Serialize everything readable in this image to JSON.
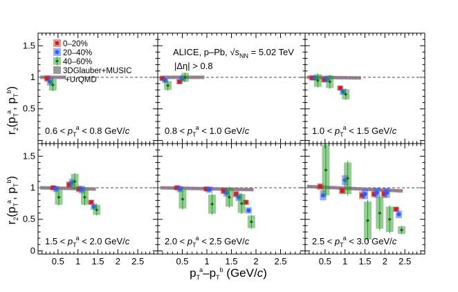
{
  "chart_data": {
    "type": "scatter",
    "title": "ALICE, p–Pb, √s_NN = 5.02 TeV",
    "annotation": "|Δη| > 0.8",
    "xlabel": "p_T^a–p_T^b (GeV/c)",
    "ylabel": "r_2(p_T^a, p_T^b)",
    "xlim": [
      0,
      3
    ],
    "ylim": [
      -0.05,
      1.7
    ],
    "x_ticks": [
      "0.5",
      "1",
      "1.5",
      "2",
      "2.5"
    ],
    "y_ticks": [
      "0",
      "0.5",
      "1",
      "1.5"
    ],
    "legend": [
      {
        "label": "0–20%",
        "color": "#cc1f1f"
      },
      {
        "label": "20–40%",
        "color": "#2e5bff"
      },
      {
        "label": "40–60%",
        "color": "#2a9a2a"
      },
      {
        "label": "3DGlauber+MUSIC",
        "color": "#999999"
      },
      {
        "label": "+UrQMD",
        "color": "#999999"
      }
    ],
    "panels": [
      {
        "caption": "0.6 < p_T^a < 0.8 GeV/c",
        "series": [
          {
            "name": "0–20%",
            "x": [
              0.3
            ],
            "y": [
              0.98
            ],
            "err": [
              0.05
            ]
          },
          {
            "name": "20–40%",
            "x": [
              0.3
            ],
            "y": [
              0.93
            ],
            "err": [
              0.06
            ]
          },
          {
            "name": "40–60%",
            "x": [
              0.3
            ],
            "y": [
              0.88
            ],
            "err": [
              0.09
            ]
          }
        ],
        "model": [
          [
            0.05,
            1.0
          ],
          [
            0.7,
            1.0
          ]
        ]
      },
      {
        "caption": "0.8 < p_T^a < 1.0 GeV/c",
        "series": [
          {
            "name": "0–20%",
            "x": [
              0.15,
              0.5
            ],
            "y": [
              0.98,
              0.93
            ],
            "err": [
              0.03,
              0.04
            ]
          },
          {
            "name": "20–40%",
            "x": [
              0.15,
              0.5
            ],
            "y": [
              0.95,
              0.98
            ],
            "err": [
              0.04,
              0.05
            ]
          },
          {
            "name": "40–60%",
            "x": [
              0.15,
              0.5
            ],
            "y": [
              0.87,
              1.0
            ],
            "err": [
              0.07,
              0.07
            ]
          }
        ],
        "model": [
          [
            0.05,
            1.0
          ],
          [
            0.95,
            1.0
          ]
        ]
      },
      {
        "caption": "1.0 < p_T^a < 1.5 GeV/c",
        "series": [
          {
            "name": "0–20%",
            "x": [
              0.25,
              0.55,
              0.95
            ],
            "y": [
              0.99,
              0.96,
              0.83
            ],
            "err": [
              0.04,
              0.04,
              0.04
            ]
          },
          {
            "name": "20–40%",
            "x": [
              0.25,
              0.55,
              0.95
            ],
            "y": [
              0.99,
              0.97,
              0.77
            ],
            "err": [
              0.04,
              0.05,
              0.05
            ]
          },
          {
            "name": "40–60%",
            "x": [
              0.25,
              0.55,
              0.95
            ],
            "y": [
              0.95,
              0.93,
              0.73
            ],
            "err": [
              0.1,
              0.1,
              0.08
            ]
          }
        ],
        "model": [
          [
            0.05,
            1.0
          ],
          [
            1.4,
            0.99
          ]
        ]
      },
      {
        "caption": "1.5 < p_T^a < 2.0 GeV/c",
        "series": [
          {
            "name": "0–20%",
            "x": [
              0.45,
              0.85,
              1.1,
              1.4
            ],
            "y": [
              1.0,
              1.05,
              0.98,
              0.77
            ],
            "err": [
              0.04,
              0.05,
              0.05,
              0.04
            ]
          },
          {
            "name": "20–40%",
            "x": [
              0.45,
              0.85,
              1.1,
              1.4
            ],
            "y": [
              0.98,
              1.08,
              0.97,
              0.7
            ],
            "err": [
              0.05,
              0.06,
              0.06,
              0.05
            ]
          },
          {
            "name": "40–60%",
            "x": [
              0.45,
              0.85,
              1.1,
              1.4
            ],
            "y": [
              0.85,
              1.1,
              0.85,
              0.65
            ],
            "err": [
              0.12,
              0.12,
              0.12,
              0.08
            ]
          }
        ],
        "model": [
          [
            0.05,
            1.0
          ],
          [
            1.45,
            0.98
          ]
        ]
      },
      {
        "caption": "2.0 < p_T^a < 2.5 GeV/c",
        "series": [
          {
            "name": "0–20%",
            "x": [
              0.45,
              1.05,
              1.4,
              1.65,
              1.85
            ],
            "y": [
              1.0,
              0.98,
              0.95,
              0.9,
              0.77
            ],
            "err": [
              0.04,
              0.04,
              0.05,
              0.05,
              0.04
            ]
          },
          {
            "name": "20–40%",
            "x": [
              0.45,
              1.05,
              1.4,
              1.65,
              1.85
            ],
            "y": [
              0.98,
              0.97,
              0.92,
              0.85,
              0.64
            ],
            "err": [
              0.05,
              0.05,
              0.06,
              0.06,
              0.05
            ]
          },
          {
            "name": "40–60%",
            "x": [
              0.45,
              1.05,
              1.4,
              1.65,
              1.85
            ],
            "y": [
              0.82,
              0.74,
              0.85,
              0.75,
              0.46
            ],
            "err": [
              0.15,
              0.15,
              0.15,
              0.15,
              0.1
            ]
          }
        ],
        "model": [
          [
            0.05,
            1.0
          ],
          [
            1.95,
            0.97
          ]
        ]
      },
      {
        "caption": "2.5 < p_T^a < 3.0 GeV/c",
        "series": [
          {
            "name": "0–20%",
            "x": [
              0.45,
              1.0,
              1.5,
              1.8,
              2.05,
              2.35
            ],
            "y": [
              1.02,
              0.95,
              0.88,
              0.9,
              0.9,
              0.66
            ],
            "err": [
              0.05,
              0.05,
              0.06,
              0.05,
              0.06,
              0.04
            ]
          },
          {
            "name": "20–40%",
            "x": [
              0.45,
              1.0,
              1.5,
              1.8,
              2.05,
              2.35
            ],
            "y": [
              0.88,
              1.12,
              0.9,
              0.92,
              0.92,
              0.58
            ],
            "err": [
              0.08,
              0.08,
              0.08,
              0.08,
              0.08,
              0.06
            ]
          },
          {
            "name": "40–60%",
            "x": [
              0.45,
              1.0,
              1.5,
              1.8,
              2.05,
              2.35
            ],
            "y": [
              1.28,
              1.15,
              0.48,
              0.6,
              0.5,
              0.33
            ],
            "err": [
              0.4,
              0.25,
              0.3,
              0.25,
              0.2,
              0.06
            ]
          }
        ],
        "model": [
          [
            0.05,
            1.02
          ],
          [
            2.45,
            0.95
          ]
        ]
      }
    ]
  }
}
